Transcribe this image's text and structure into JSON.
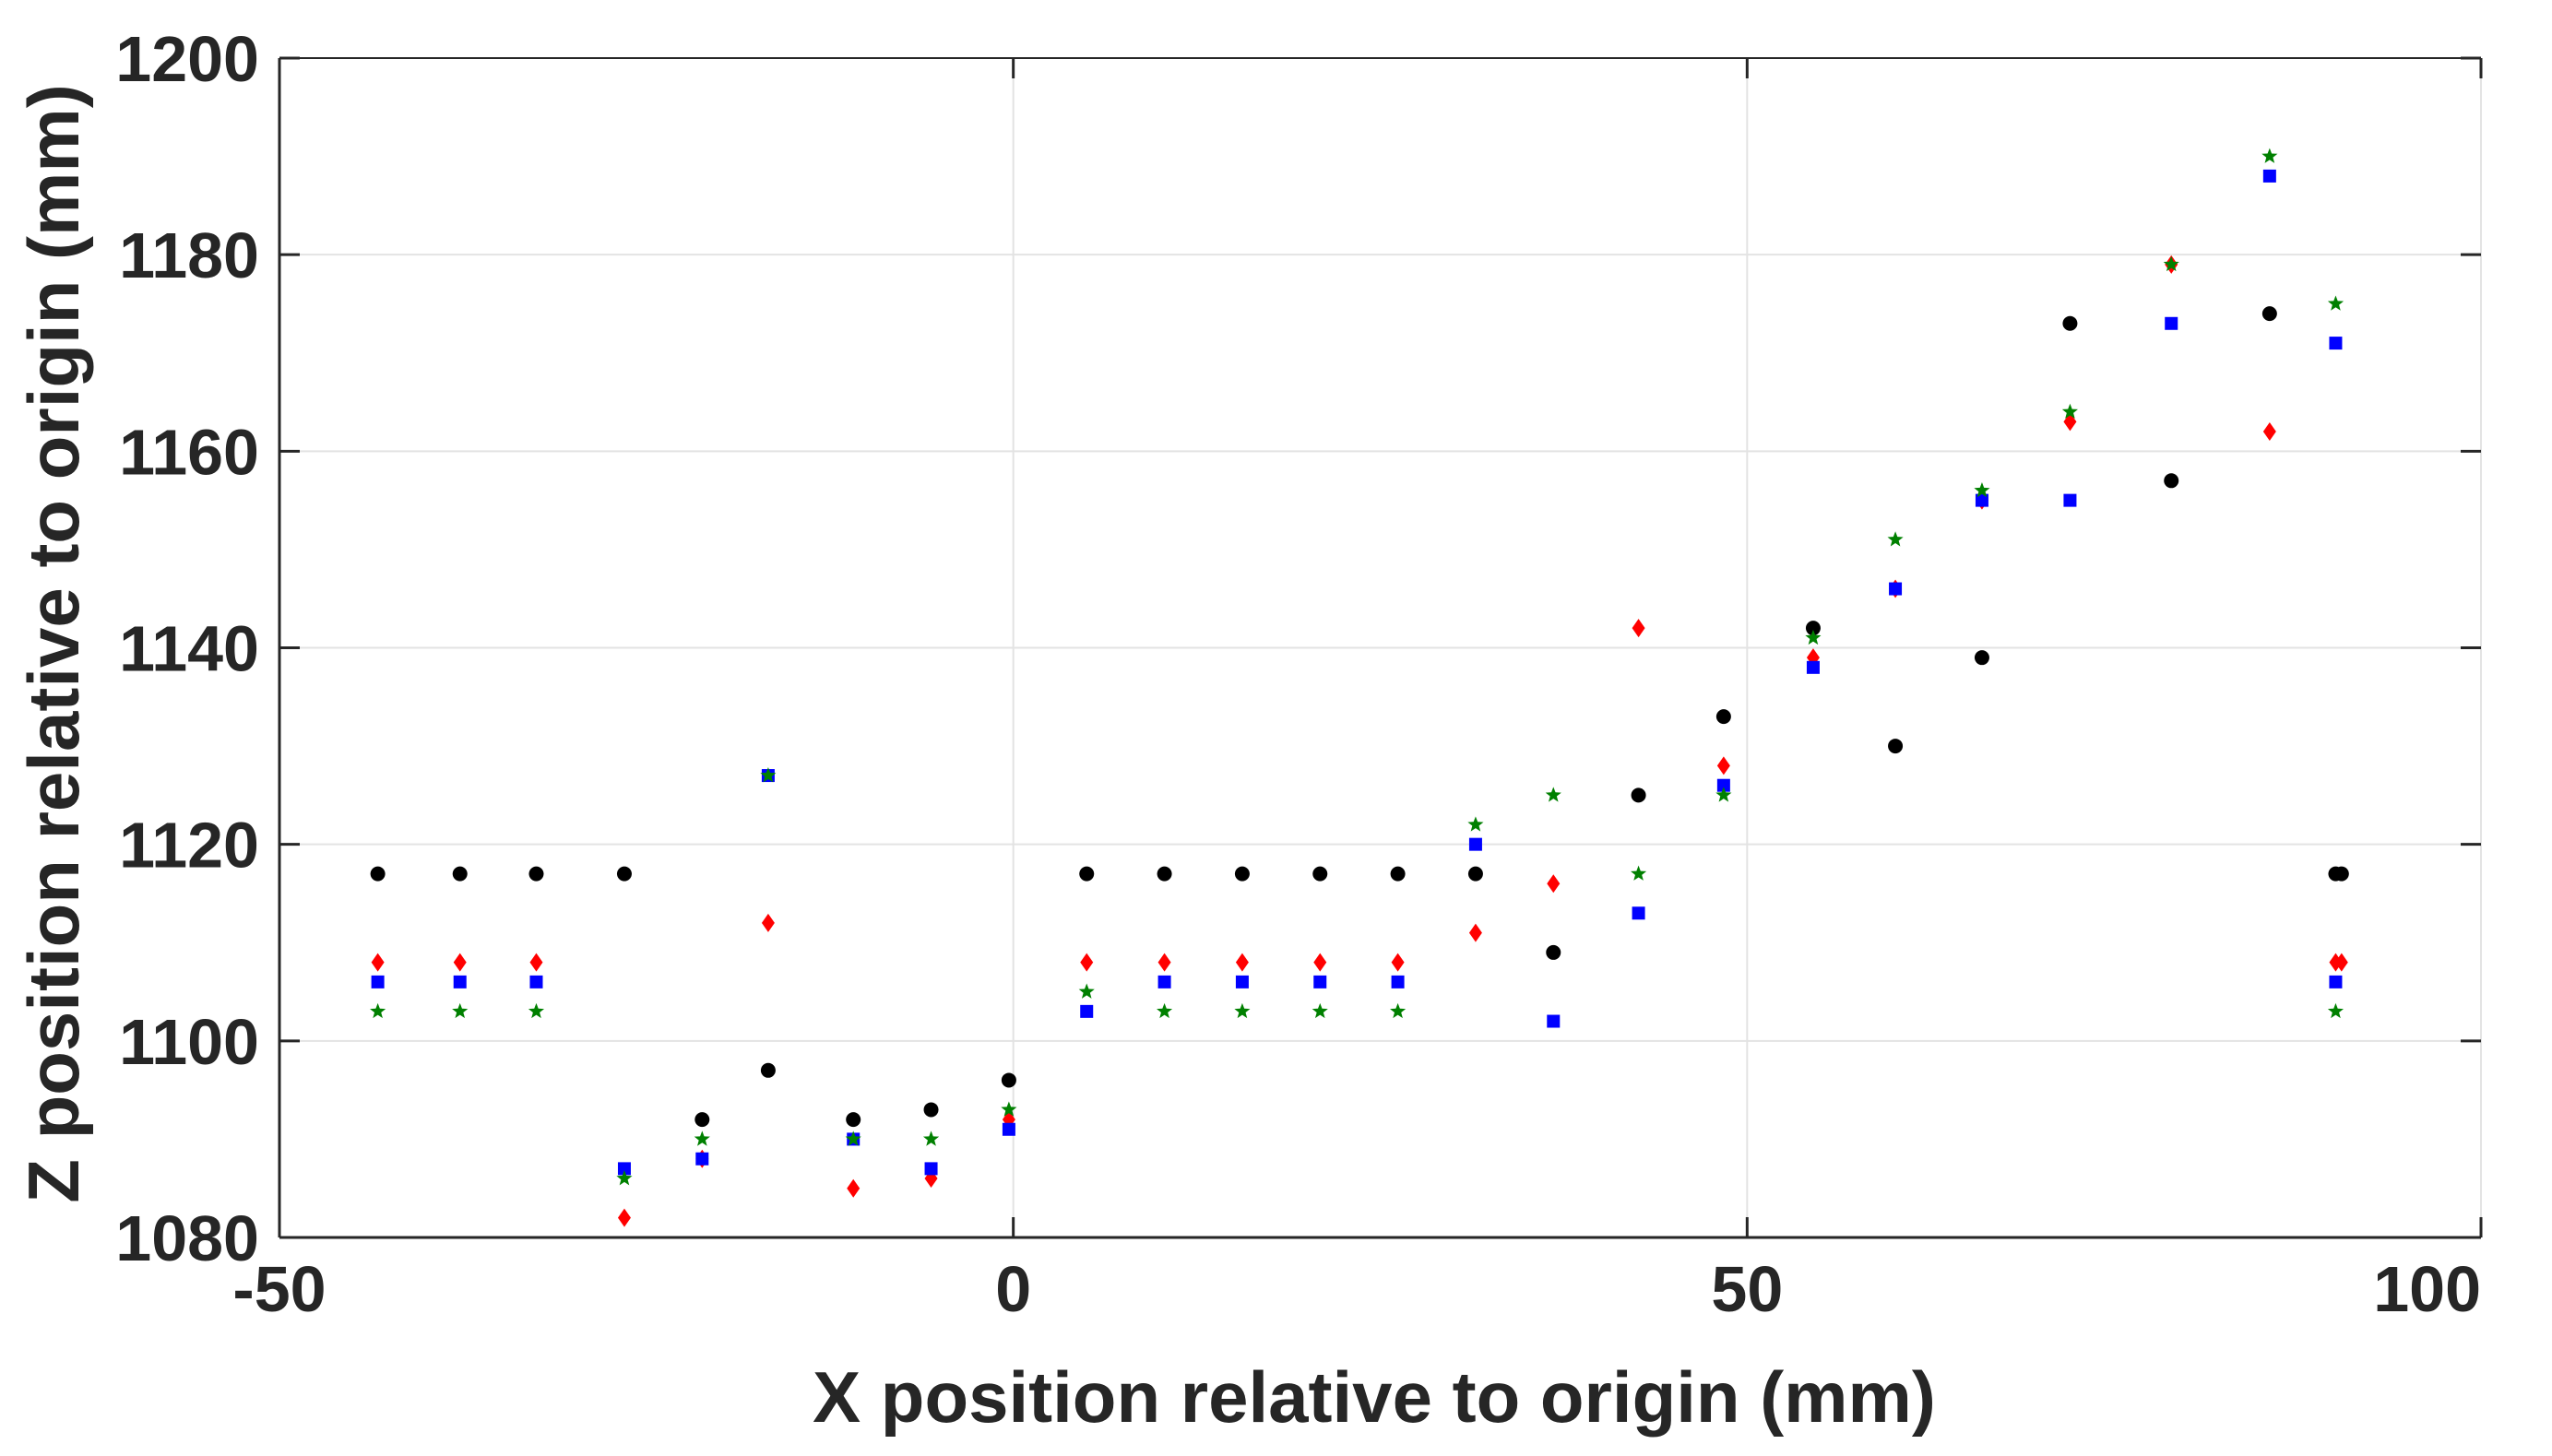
{
  "chart_data": {
    "type": "scatter",
    "title": "",
    "xlabel": "X position relative to origin (mm)",
    "ylabel": "Z position relative to origin (mm)",
    "xlim": [
      -50,
      100
    ],
    "ylim": [
      1080,
      1200
    ],
    "xticks": [
      -50,
      0,
      50,
      100
    ],
    "yticks": [
      1080,
      1100,
      1120,
      1140,
      1160,
      1180,
      1200
    ],
    "xtick_labels": [
      "-50",
      "0",
      "50",
      "100"
    ],
    "ytick_labels": [
      "1080",
      "1100",
      "1120",
      "1140",
      "1160",
      "1180",
      "1200"
    ],
    "grid": true,
    "legend": "none",
    "x": [
      -43.3,
      -37.7,
      -32.5,
      -26.5,
      -21.2,
      -16.7,
      -10.9,
      -5.6,
      -0.3,
      5.0,
      10.3,
      15.6,
      20.9,
      26.2,
      31.5,
      36.8,
      42.6,
      48.4,
      54.5,
      60.1,
      66.0,
      72.0,
      78.9,
      85.6,
      90.1
    ],
    "series": [
      {
        "marker": "circle",
        "color": "#000000",
        "values": [
          1117,
          1117,
          1117,
          1117,
          1092,
          1097,
          1092,
          1093,
          1096,
          1117,
          1117,
          1117,
          1117,
          1117,
          1117,
          1109,
          1125,
          1133,
          1142,
          1130,
          1139,
          1173,
          1157,
          1174,
          1117
        ]
      },
      {
        "marker": "diamond",
        "color": "#ff0000",
        "values": [
          1108,
          1108,
          1108,
          1082,
          1088,
          1112,
          1085,
          1086,
          1092,
          1108,
          1108,
          1108,
          1108,
          1108,
          1111,
          1116,
          1142,
          1128,
          1139,
          1146,
          1155,
          1163,
          1179,
          1162,
          1108
        ]
      },
      {
        "marker": "square",
        "color": "#0000ff",
        "values": [
          1106,
          1106,
          1106,
          1087,
          1088,
          1127,
          1090,
          1087,
          1091,
          1103,
          1106,
          1106,
          1106,
          1106,
          1120,
          1102,
          1113,
          1126,
          1138,
          1146,
          1155,
          1155,
          1173,
          1188,
          1106
        ]
      },
      {
        "marker": "star",
        "color": "#008000",
        "values": [
          1103,
          1103,
          1103,
          1086,
          1090,
          1127,
          1090,
          1090,
          1093,
          1105,
          1103,
          1103,
          1103,
          1103,
          1122,
          1125,
          1117,
          1125,
          1141,
          1151,
          1156,
          1164,
          1179,
          1190,
          1103
        ]
      }
    ],
    "extra_points": [
      {
        "marker": "circle",
        "color": "#000000",
        "x": 90.5,
        "y": 1117
      },
      {
        "marker": "square",
        "color": "#0000ff",
        "x": 90.1,
        "y": 1171
      },
      {
        "marker": "star",
        "color": "#008000",
        "x": 90.1,
        "y": 1175
      },
      {
        "marker": "diamond",
        "color": "#ff0000",
        "x": 90.5,
        "y": 1108
      }
    ]
  }
}
